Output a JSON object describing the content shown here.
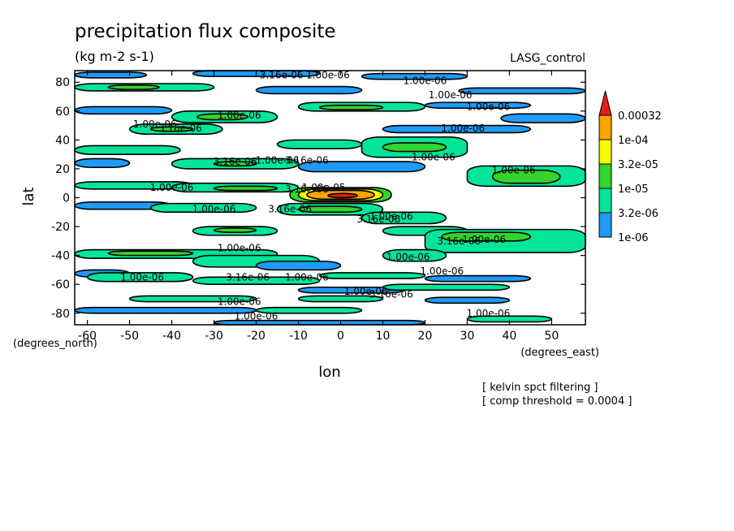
{
  "chart_data": {
    "type": "heatmap",
    "title": "precipitation flux composite",
    "subtitle": "(kg m-2 s-1)",
    "run_label": "LASG_control",
    "xlabel": "lon",
    "ylabel": "lat",
    "x_units_label": "(degrees_east)",
    "y_units_label": "(degrees_north)",
    "xlim": [
      -63,
      58
    ],
    "ylim": [
      -88,
      88
    ],
    "x_ticks": [
      -60,
      -50,
      -40,
      -30,
      -20,
      -10,
      0,
      10,
      20,
      30,
      40,
      50
    ],
    "y_ticks": [
      -80,
      -60,
      -40,
      -20,
      0,
      20,
      40,
      60,
      80
    ],
    "grid": false,
    "legend_position": "right",
    "levels": [
      {
        "label": "1e-06",
        "color": "#1e9bf5"
      },
      {
        "label": "3.2e-06",
        "color": "#04e59a"
      },
      {
        "label": "1e-05",
        "color": "#35d32d"
      },
      {
        "label": "3.2e-05",
        "color": "#fbfb00"
      },
      {
        "label": "1e-04",
        "color": "#fba500"
      },
      {
        "label": "0.00032",
        "color": "#e61e1e"
      }
    ],
    "cells": [
      {
        "x": [
          -63,
          -46
        ],
        "y": [
          83,
          87
        ],
        "level": 0
      },
      {
        "x": [
          -35,
          -5
        ],
        "y": [
          84,
          88
        ],
        "level": 0
      },
      {
        "x": [
          5,
          30
        ],
        "y": [
          82,
          86
        ],
        "level": 0
      },
      {
        "x": [
          -63,
          -30
        ],
        "y": [
          74,
          79
        ],
        "level": 1
      },
      {
        "x": [
          -55,
          -43
        ],
        "y": [
          75,
          78
        ],
        "level": 2
      },
      {
        "x": [
          -20,
          5
        ],
        "y": [
          72,
          77
        ],
        "level": 0
      },
      {
        "x": [
          28,
          58
        ],
        "y": [
          72,
          76
        ],
        "level": 0
      },
      {
        "x": [
          -10,
          20
        ],
        "y": [
          60,
          66
        ],
        "level": 1
      },
      {
        "x": [
          -5,
          10
        ],
        "y": [
          61,
          64
        ],
        "level": 2
      },
      {
        "x": [
          20,
          45
        ],
        "y": [
          62,
          66
        ],
        "level": 0
      },
      {
        "x": [
          -63,
          -40
        ],
        "y": [
          58,
          63
        ],
        "level": 0
      },
      {
        "x": [
          -40,
          -15
        ],
        "y": [
          52,
          60
        ],
        "level": 1
      },
      {
        "x": [
          -34,
          -22
        ],
        "y": [
          54,
          58
        ],
        "level": 2
      },
      {
        "x": [
          -50,
          -28
        ],
        "y": [
          44,
          51
        ],
        "level": 1
      },
      {
        "x": [
          -45,
          -35
        ],
        "y": [
          46,
          49
        ],
        "level": 2
      },
      {
        "x": [
          38,
          58
        ],
        "y": [
          52,
          58
        ],
        "level": 0
      },
      {
        "x": [
          10,
          45
        ],
        "y": [
          45,
          50
        ],
        "level": 0
      },
      {
        "x": [
          -63,
          -38
        ],
        "y": [
          30,
          36
        ],
        "level": 1
      },
      {
        "x": [
          -15,
          5
        ],
        "y": [
          34,
          40
        ],
        "level": 1
      },
      {
        "x": [
          5,
          30
        ],
        "y": [
          28,
          42
        ],
        "level": 1
      },
      {
        "x": [
          10,
          25
        ],
        "y": [
          32,
          38
        ],
        "level": 2
      },
      {
        "x": [
          -63,
          -50
        ],
        "y": [
          21,
          27
        ],
        "level": 0
      },
      {
        "x": [
          -40,
          -10
        ],
        "y": [
          20,
          27
        ],
        "level": 1
      },
      {
        "x": [
          -30,
          -20
        ],
        "y": [
          22,
          25
        ],
        "level": 2
      },
      {
        "x": [
          -10,
          20
        ],
        "y": [
          18,
          25
        ],
        "level": 0
      },
      {
        "x": [
          30,
          58
        ],
        "y": [
          8,
          22
        ],
        "level": 1
      },
      {
        "x": [
          36,
          52
        ],
        "y": [
          10,
          19
        ],
        "level": 2
      },
      {
        "x": [
          -63,
          -35
        ],
        "y": [
          6,
          11
        ],
        "level": 1
      },
      {
        "x": [
          -40,
          -10
        ],
        "y": [
          4,
          10
        ],
        "level": 1
      },
      {
        "x": [
          -30,
          -15
        ],
        "y": [
          5,
          8
        ],
        "level": 2
      },
      {
        "x": [
          -12,
          12
        ],
        "y": [
          -3,
          7
        ],
        "level": 2
      },
      {
        "x": [
          -10,
          10
        ],
        "y": [
          -2,
          6
        ],
        "level": 3
      },
      {
        "x": [
          -8,
          8
        ],
        "y": [
          -1,
          5
        ],
        "level": 4
      },
      {
        "x": [
          -3,
          4
        ],
        "y": [
          0,
          3
        ],
        "level": 5
      },
      {
        "x": [
          -63,
          -40
        ],
        "y": [
          -8,
          -3
        ],
        "level": 0
      },
      {
        "x": [
          -45,
          -20
        ],
        "y": [
          -10,
          -4
        ],
        "level": 1
      },
      {
        "x": [
          -15,
          10
        ],
        "y": [
          -12,
          -4
        ],
        "level": 1
      },
      {
        "x": [
          -10,
          5
        ],
        "y": [
          -10,
          -6
        ],
        "level": 2
      },
      {
        "x": [
          5,
          25
        ],
        "y": [
          -18,
          -10
        ],
        "level": 1
      },
      {
        "x": [
          10,
          30
        ],
        "y": [
          -26,
          -20
        ],
        "level": 1
      },
      {
        "x": [
          20,
          58
        ],
        "y": [
          -38,
          -22
        ],
        "level": 1
      },
      {
        "x": [
          24,
          45
        ],
        "y": [
          -30,
          -24
        ],
        "level": 2
      },
      {
        "x": [
          -35,
          -15
        ],
        "y": [
          -26,
          -20
        ],
        "level": 1
      },
      {
        "x": [
          -30,
          -20
        ],
        "y": [
          -24,
          -21
        ],
        "level": 2
      },
      {
        "x": [
          -63,
          -15
        ],
        "y": [
          -42,
          -36
        ],
        "level": 1
      },
      {
        "x": [
          -55,
          -35
        ],
        "y": [
          -40,
          -37
        ],
        "level": 2
      },
      {
        "x": [
          -35,
          -5
        ],
        "y": [
          -48,
          -40
        ],
        "level": 1
      },
      {
        "x": [
          10,
          25
        ],
        "y": [
          -44,
          -36
        ],
        "level": 1
      },
      {
        "x": [
          -63,
          -50
        ],
        "y": [
          -55,
          -50
        ],
        "level": 0
      },
      {
        "x": [
          -20,
          0
        ],
        "y": [
          -50,
          -44
        ],
        "level": 0
      },
      {
        "x": [
          -60,
          -35
        ],
        "y": [
          -58,
          -52
        ],
        "level": 1
      },
      {
        "x": [
          -35,
          -5
        ],
        "y": [
          -60,
          -55
        ],
        "level": 1
      },
      {
        "x": [
          -5,
          20
        ],
        "y": [
          -56,
          -52
        ],
        "level": 1
      },
      {
        "x": [
          20,
          45
        ],
        "y": [
          -58,
          -54
        ],
        "level": 0
      },
      {
        "x": [
          -10,
          15
        ],
        "y": [
          -66,
          -62
        ],
        "level": 0
      },
      {
        "x": [
          10,
          40
        ],
        "y": [
          -64,
          -60
        ],
        "level": 1
      },
      {
        "x": [
          -50,
          -20
        ],
        "y": [
          -72,
          -68
        ],
        "level": 1
      },
      {
        "x": [
          -10,
          10
        ],
        "y": [
          -72,
          -68
        ],
        "level": 1
      },
      {
        "x": [
          20,
          40
        ],
        "y": [
          -73,
          -69
        ],
        "level": 0
      },
      {
        "x": [
          -63,
          -20
        ],
        "y": [
          -80,
          -76
        ],
        "level": 0
      },
      {
        "x": [
          -20,
          5
        ],
        "y": [
          -80,
          -76
        ],
        "level": 1
      },
      {
        "x": [
          30,
          50
        ],
        "y": [
          -86,
          -82
        ],
        "level": 1
      },
      {
        "x": [
          -30,
          20
        ],
        "y": [
          -88,
          -85
        ],
        "level": 0
      }
    ],
    "annotations": [
      {
        "text": "3.16e-06",
        "x": -14,
        "y": 85
      },
      {
        "text": "1.00e-06",
        "x": -3,
        "y": 85
      },
      {
        "text": "1.00e-06",
        "x": 20,
        "y": 81
      },
      {
        "text": "1.00e-06",
        "x": 26,
        "y": 71
      },
      {
        "text": "1.00e-06",
        "x": 35,
        "y": 63
      },
      {
        "text": "1.00e-06",
        "x": -24,
        "y": 57
      },
      {
        "text": "1.00e-06",
        "x": -44,
        "y": 51
      },
      {
        "text": "3.16e-06",
        "x": -38,
        "y": 48
      },
      {
        "text": "1.00e-06",
        "x": 29,
        "y": 48
      },
      {
        "text": "1.00e-06",
        "x": 22,
        "y": 28
      },
      {
        "text": "1.00e-06",
        "x": 41,
        "y": 19
      },
      {
        "text": "3.16e-06",
        "x": -25,
        "y": 25
      },
      {
        "text": "1.00e-06",
        "x": -15,
        "y": 26
      },
      {
        "text": "3.16e-06",
        "x": -8,
        "y": 26
      },
      {
        "text": "1.00e-06",
        "x": -40,
        "y": 7
      },
      {
        "text": "1.00e-05",
        "x": -4,
        "y": 7
      },
      {
        "text": "3.16e-06",
        "x": -8,
        "y": 6
      },
      {
        "text": "1.00e-06",
        "x": -30,
        "y": -8
      },
      {
        "text": "3.16e-06",
        "x": -12,
        "y": -8
      },
      {
        "text": "1.00e-06",
        "x": 12,
        "y": -13
      },
      {
        "text": "3.16e-06",
        "x": 9,
        "y": -15
      },
      {
        "text": "1.00e-06",
        "x": 34,
        "y": -29
      },
      {
        "text": "1.00e-06",
        "x": -24,
        "y": -35
      },
      {
        "text": "3.16e-06",
        "x": 28,
        "y": -30
      },
      {
        "text": "1.00e-06",
        "x": 16,
        "y": -41
      },
      {
        "text": "1.00e-06",
        "x": 24,
        "y": -51
      },
      {
        "text": "1.00e-06",
        "x": -47,
        "y": -55
      },
      {
        "text": "3.16e-06",
        "x": -22,
        "y": -55
      },
      {
        "text": "1.00e-06",
        "x": -8,
        "y": -55
      },
      {
        "text": "1.00e-06",
        "x": 6,
        "y": -65
      },
      {
        "text": "3.16e-06",
        "x": 12,
        "y": -67
      },
      {
        "text": "1.00e-06",
        "x": -24,
        "y": -72
      },
      {
        "text": "1.00e-06",
        "x": -20,
        "y": -82
      },
      {
        "text": "1.00e-06",
        "x": 35,
        "y": -80
      }
    ],
    "notes": [
      "[ kelvin spct filtering ]",
      "[ comp threshold = 0.0004 ]"
    ]
  }
}
